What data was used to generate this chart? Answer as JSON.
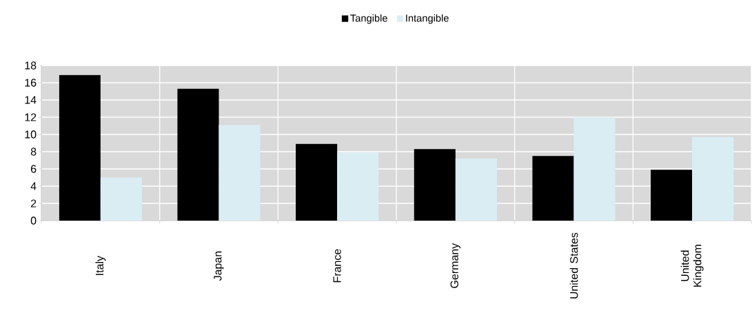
{
  "chart_data": {
    "type": "bar",
    "categories": [
      "Italy",
      "Japan",
      "France",
      "Germany",
      "United States",
      "United Kingdom"
    ],
    "series": [
      {
        "name": "Tangible",
        "color": "#000000",
        "values": [
          16.9,
          15.3,
          8.9,
          8.3,
          7.5,
          5.9
        ]
      },
      {
        "name": "Intangible",
        "color": "#daedf3",
        "values": [
          5.0,
          11.1,
          7.9,
          7.2,
          12.0,
          9.7
        ]
      }
    ],
    "ylim": [
      0,
      18
    ],
    "yticks": [
      0,
      2,
      4,
      6,
      8,
      10,
      12,
      14,
      16,
      18
    ],
    "grid": true,
    "legend": "top"
  }
}
